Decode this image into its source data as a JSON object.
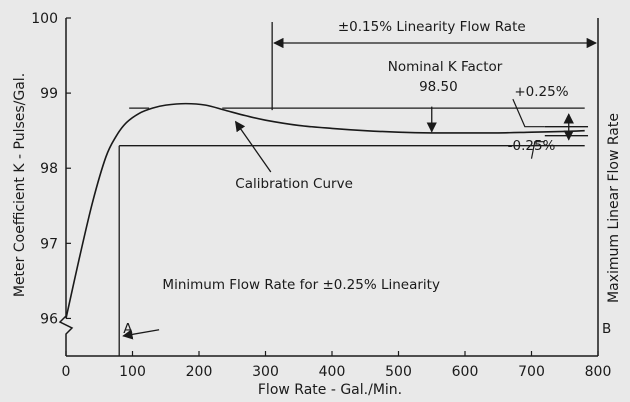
{
  "chart_data": {
    "type": "line",
    "title": "",
    "xlabel": "Flow Rate - Gal./Min.",
    "ylabel": "Meter Coefficient K - Pulses/Gal.",
    "right_label": "Maximum Linear Flow Rate",
    "xlim": [
      0,
      800
    ],
    "ylim": [
      95.5,
      100
    ],
    "x_ticks": [
      0,
      100,
      200,
      300,
      400,
      500,
      600,
      700,
      800
    ],
    "x_tick_labels": [
      "0",
      "100",
      "200",
      "300",
      "400",
      "500",
      "600",
      "700",
      "800"
    ],
    "y_ticks": [
      96,
      97,
      98,
      99,
      100
    ],
    "y_tick_labels": [
      "96",
      "97",
      "98",
      "99",
      "100"
    ],
    "grid": false,
    "series": [
      {
        "name": "Calibration Curve",
        "x": [
          0,
          20,
          40,
          60,
          75,
          90,
          110,
          130,
          150,
          180,
          210,
          240,
          270,
          300,
          350,
          400,
          450,
          500,
          550,
          600,
          650,
          700,
          750,
          780
        ],
        "y": [
          96.0,
          96.8,
          97.55,
          98.15,
          98.42,
          98.6,
          98.73,
          98.8,
          98.84,
          98.86,
          98.84,
          98.77,
          98.7,
          98.64,
          98.57,
          98.53,
          98.5,
          98.48,
          98.47,
          98.47,
          98.47,
          98.48,
          98.49,
          98.5
        ]
      }
    ],
    "reference_lines": {
      "upper_y": 98.8,
      "lower_y": 98.3,
      "nominal_k": 98.5,
      "minimum_flow_x": 80,
      "maximum_flow_x": 800,
      "linearity_start_x": 310
    },
    "annotations": {
      "linearity_range": "±0.15% Linearity Flow Rate",
      "nominal_title": "Nominal K Factor",
      "nominal_value": "98.50",
      "plus_tol": "+0.25%",
      "minus_tol": "-0.25%",
      "curve_label": "Calibration Curve",
      "min_flow_label": "Minimum Flow Rate for ±0.25% Linearity",
      "marker_a": "A",
      "marker_b": "B"
    }
  }
}
